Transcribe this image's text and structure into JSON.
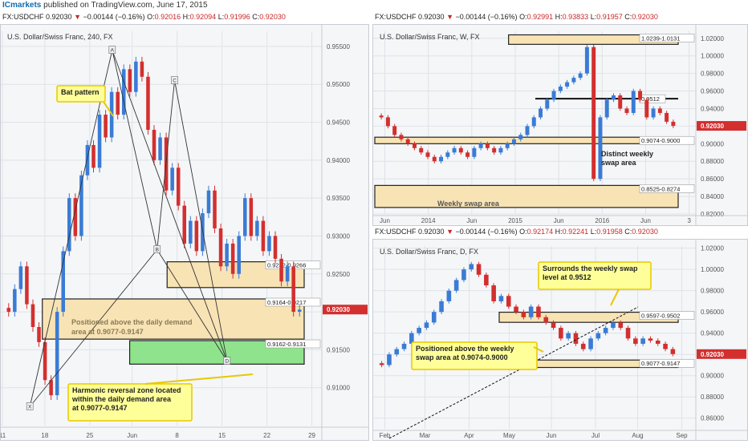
{
  "publisher": {
    "brand": "ICmarkets",
    "text": "published on TradingView.com, June 17, 2015"
  },
  "colors": {
    "up": "#3a7bd5",
    "down": "#d32f2f",
    "zone": "#f8e3b5",
    "zone_border": "#222222",
    "demand_green": "#8fe38c",
    "callout": "#ffff99",
    "callout_border": "#e8c800",
    "price_tag": "#d32f2f",
    "grid": "#dfe3e8"
  },
  "panels": {
    "h4": {
      "ohlc_prefix": "FX:USDCHF 0.92030",
      "ohlc_change": "−0.00144 (−0.16%)",
      "ohlc_o": "O:",
      "ohlc_o_val": "0.92016",
      "ohlc_h": "H:",
      "ohlc_h_val": "0.92094",
      "ohlc_l": "L:",
      "ohlc_l_val": "0.91996",
      "ohlc_c": "C:",
      "ohlc_c_val": "0.92030",
      "title": "U.S. Dollar/Swiss Franc, 240, FX",
      "x_ticks": [
        {
          "t": 0,
          "l": "11"
        },
        {
          "t": 8.5,
          "l": "18"
        },
        {
          "t": 17.5,
          "l": "25"
        },
        {
          "t": 26,
          "l": "Jun"
        },
        {
          "t": 35,
          "l": "8"
        },
        {
          "t": 44,
          "l": "15"
        },
        {
          "t": 53,
          "l": "22"
        },
        {
          "t": 62,
          "l": "29"
        }
      ],
      "y_ticks": [
        "0.95500",
        "0.95000",
        "0.94500",
        "0.94000",
        "0.93500",
        "0.93000",
        "0.92500",
        "0.92000",
        "0.91500",
        "0.91000"
      ],
      "current_price": "0.92030",
      "zones": [
        {
          "label": "0.9232-0.9266",
          "hi": 0.9266,
          "lo": 0.9232,
          "x0": 33,
          "type": "zone"
        },
        {
          "label": "0.9164-0.9217",
          "hi": 0.9217,
          "lo": 0.9164,
          "x0": 8,
          "type": "zone"
        },
        {
          "label": "0.9162-0.9131",
          "hi": 0.9162,
          "lo": 0.9131,
          "x0": 25.5,
          "type": "green"
        }
      ],
      "pattern_points": [
        {
          "label": "X",
          "t": 5.5,
          "p": 0.9075
        },
        {
          "label": "A",
          "t": 22,
          "p": 0.9545
        },
        {
          "label": "B",
          "t": 31,
          "p": 0.9282
        },
        {
          "label": "C",
          "t": 34.5,
          "p": 0.9505
        },
        {
          "label": "D",
          "t": 45,
          "p": 0.9135
        }
      ],
      "annotations": [
        {
          "text": "Bat pattern"
        },
        {
          "text": "Positioned above the daily demand area at 0.9077-0.9147"
        },
        {
          "text": "Harmonic reversal zone located within the daily demand area at 0.9077-0.9147"
        }
      ]
    },
    "weekly": {
      "ohlc_prefix": "FX:USDCHF 0.92030",
      "ohlc_change": "−0.00144 (−0.16%)",
      "ohlc_o": "O:",
      "ohlc_o_val": "0.92991",
      "ohlc_h": "H:",
      "ohlc_h_val": "0.93833",
      "ohlc_l": "L:",
      "ohlc_l_val": "0.91957",
      "ohlc_c": "C:",
      "ohlc_c_val": "0.92030",
      "title": "U.S. Dollar/Swiss Franc, W, FX",
      "x_ticks": [
        {
          "t": 3,
          "l": "Jun"
        },
        {
          "t": 16,
          "l": "2014"
        },
        {
          "t": 29,
          "l": "Jun"
        },
        {
          "t": 42,
          "l": "2015"
        },
        {
          "t": 55,
          "l": "Jun"
        },
        {
          "t": 68,
          "l": "2016"
        },
        {
          "t": 81,
          "l": "Jun"
        },
        {
          "t": 94,
          "l": "3"
        }
      ],
      "y_ticks": [
        "1.02000",
        "1.00000",
        "0.98000",
        "0.96000",
        "0.94000",
        "0.92000",
        "0.90000",
        "0.88000",
        "0.86000",
        "0.84000",
        "0.82000"
      ],
      "current_price": "0.92030",
      "zones": [
        {
          "label": "1.0239-1.0131",
          "hi": 1.0239,
          "lo": 1.0131,
          "x0": 40,
          "type": "zone"
        },
        {
          "label": "0.9074-0.9000",
          "hi": 0.9074,
          "lo": 0.9,
          "x0": 0,
          "type": "zone"
        },
        {
          "label": "0.8525-0.8274",
          "hi": 0.8525,
          "lo": 0.8274,
          "x0": 0,
          "type": "zone"
        }
      ],
      "level": {
        "label": "0.9512",
        "p": 0.9512,
        "x0": 48
      },
      "annotations": [
        {
          "text": "Distinct weekly swap area"
        },
        {
          "text": "Weekly swap area"
        }
      ]
    },
    "daily": {
      "ohlc_prefix": "FX:USDCHF 0.92030",
      "ohlc_change": "−0.00144 (−0.16%)",
      "ohlc_o": "O:",
      "ohlc_o_val": "0.92174",
      "ohlc_h": "H:",
      "ohlc_h_val": "0.92241",
      "ohlc_l": "L:",
      "ohlc_l_val": "0.91958",
      "ohlc_c": "C:",
      "ohlc_c_val": "0.92030",
      "title": "U.S. Dollar/Swiss Franc, D, FX",
      "x_ticks": [
        {
          "t": 5,
          "l": "Feb"
        },
        {
          "t": 25,
          "l": "Mar"
        },
        {
          "t": 47,
          "l": "Apr"
        },
        {
          "t": 67,
          "l": "May"
        },
        {
          "t": 88,
          "l": "Jun"
        },
        {
          "t": 110,
          "l": "Jul"
        },
        {
          "t": 131,
          "l": "Aug"
        },
        {
          "t": 153,
          "l": "Sep"
        }
      ],
      "y_ticks": [
        "1.02000",
        "1.00000",
        "0.98000",
        "0.96000",
        "0.94000",
        "0.92000",
        "0.90000",
        "0.88000",
        "0.86000"
      ],
      "current_price": "0.92030",
      "zones": [
        {
          "label": "0.9597-0.9502",
          "hi": 0.9597,
          "lo": 0.9502,
          "x0": 62,
          "type": "zone"
        },
        {
          "label": "0.9077-0.9147",
          "hi": 0.9147,
          "lo": 0.9077,
          "x0": 68,
          "type": "zone"
        }
      ],
      "annotations": [
        {
          "text": "Surrounds the weekly swap level at 0.9512"
        },
        {
          "text": "Positioned above the weekly swap area at 0.9074-0.9000"
        }
      ]
    }
  },
  "chart_data": [
    {
      "type": "candlestick",
      "title": "U.S. Dollar/Swiss Franc, 240, FX",
      "ylim": [
        0.905,
        0.957
      ],
      "series": [
        {
          "name": "USDCHF 4H",
          "close": [
            0.92,
            0.923,
            0.926,
            0.921,
            0.918,
            0.916,
            0.911,
            0.909,
            0.92,
            0.928,
            0.935,
            0.93,
            0.938,
            0.942,
            0.939,
            0.946,
            0.943,
            0.949,
            0.946,
            0.952,
            0.949,
            0.953,
            0.951,
            0.944,
            0.94,
            0.943,
            0.936,
            0.939,
            0.934,
            0.929,
            0.932,
            0.928,
            0.933,
            0.936,
            0.931,
            0.926,
            0.929,
            0.925,
            0.93,
            0.935,
            0.93,
            0.932,
            0.928,
            0.93,
            0.927,
            0.924,
            0.926,
            0.92,
            0.9203
          ]
        }
      ]
    },
    {
      "type": "candlestick",
      "title": "U.S. Dollar/Swiss Franc, W, FX",
      "ylim": [
        0.82,
        1.028
      ],
      "series": [
        {
          "name": "USDCHF W",
          "close": [
            0.93,
            0.92,
            0.91,
            0.905,
            0.9,
            0.895,
            0.89,
            0.885,
            0.88,
            0.885,
            0.89,
            0.895,
            0.89,
            0.885,
            0.895,
            0.9,
            0.895,
            0.89,
            0.895,
            0.9,
            0.905,
            0.91,
            0.92,
            0.93,
            0.94,
            0.95,
            0.96,
            0.965,
            0.97,
            0.975,
            0.98,
            1.01,
            0.86,
            0.93,
            0.95,
            0.955,
            0.94,
            0.935,
            0.96,
            0.95,
            0.93,
            0.94,
            0.935,
            0.925,
            0.9203
          ]
        }
      ]
    },
    {
      "type": "candlestick",
      "title": "U.S. Dollar/Swiss Franc, D, FX",
      "ylim": [
        0.85,
        1.022
      ],
      "series": [
        {
          "name": "USDCHF D",
          "close": [
            0.91,
            0.92,
            0.925,
            0.93,
            0.94,
            0.945,
            0.95,
            0.96,
            0.97,
            0.98,
            0.99,
            1.0,
            1.005,
            0.995,
            0.985,
            0.97,
            0.975,
            0.965,
            0.96,
            0.955,
            0.965,
            0.955,
            0.95,
            0.945,
            0.935,
            0.94,
            0.93,
            0.925,
            0.935,
            0.94,
            0.945,
            0.95,
            0.945,
            0.935,
            0.93,
            0.935,
            0.933,
            0.93,
            0.925,
            0.9203
          ]
        }
      ]
    }
  ]
}
